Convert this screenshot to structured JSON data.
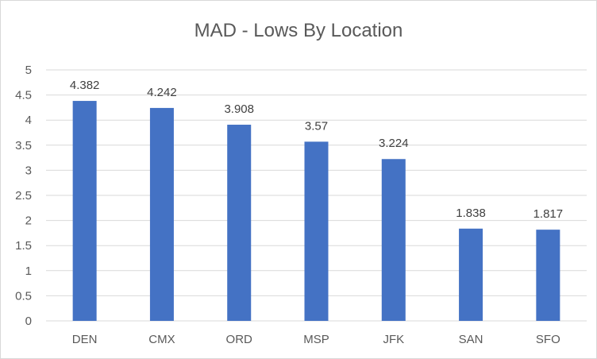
{
  "chart_data": {
    "type": "bar",
    "title": "MAD - Lows By Location",
    "xlabel": "",
    "ylabel": "",
    "categories": [
      "DEN",
      "CMX",
      "ORD",
      "MSP",
      "JFK",
      "SAN",
      "SFO"
    ],
    "values": [
      4.382,
      4.242,
      3.908,
      3.57,
      3.224,
      1.838,
      1.817
    ],
    "data_labels": [
      "4.382",
      "4.242",
      "3.908",
      "3.57",
      "3.224",
      "1.838",
      "1.817"
    ],
    "ylim": [
      0,
      5
    ],
    "yticks": [
      "0",
      "0.5",
      "1",
      "1.5",
      "2",
      "2.5",
      "3",
      "3.5",
      "4",
      "4.5",
      "5"
    ],
    "grid": true,
    "legend": "none",
    "bar_color": "#4472c4",
    "grid_color": "#d9d9d9"
  }
}
